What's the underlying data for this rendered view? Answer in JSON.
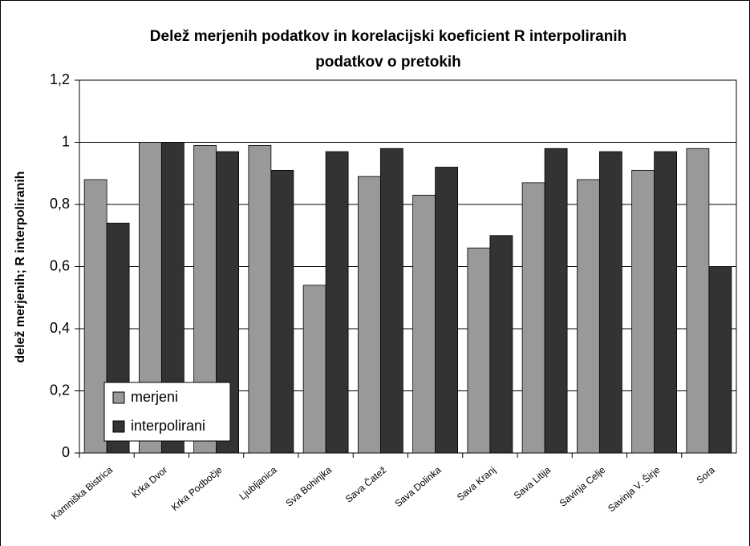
{
  "chart_data": {
    "type": "bar",
    "title": [
      "Delež merjenih podatkov in korelacijski koeficient R interpoliranih",
      "podatkov o pretokih"
    ],
    "y_label": "delež merjenih; R interpoliranih",
    "categories": [
      "Kamniška Bistrica",
      "Krka Dvor",
      "Krka Podbočje",
      "Ljubljanica",
      "Sva Bohinjka",
      "Sava Čatež",
      "Sava Dolinka",
      "Sava Kranj",
      "Sava Litija",
      "Savinja Celje",
      "Savinja V. Širje",
      "Sora"
    ],
    "series": [
      {
        "name": "merjeni",
        "color": "#999999",
        "values": [
          0.88,
          1.0,
          0.99,
          0.99,
          0.54,
          0.89,
          0.83,
          0.66,
          0.87,
          0.88,
          0.91,
          0.98
        ]
      },
      {
        "name": "interpolirani",
        "color": "#333333",
        "values": [
          0.74,
          1.0,
          0.97,
          0.91,
          0.97,
          0.98,
          0.92,
          0.7,
          0.98,
          0.97,
          0.97,
          0.6
        ]
      }
    ],
    "ylim": [
      0,
      1.2
    ],
    "yticks": [
      0,
      {
        "value": 0.2,
        "label": "0,2"
      },
      {
        "value": 0.4,
        "label": "0,4"
      },
      {
        "value": 0.6,
        "label": "0,6"
      },
      {
        "value": 0.8,
        "label": "0,8"
      },
      1,
      {
        "value": 1.2,
        "label": "1,2"
      }
    ],
    "grid": true,
    "legend": "lower-left"
  }
}
